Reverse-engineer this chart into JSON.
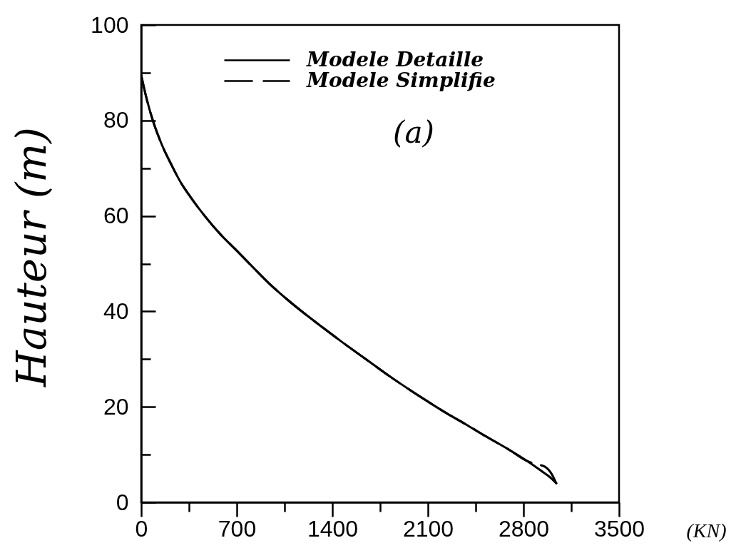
{
  "chart_data": {
    "type": "line",
    "xlabel": "(KN)",
    "ylabel": "Hauteur (m)",
    "xlim": [
      0,
      3500
    ],
    "ylim": [
      0,
      100
    ],
    "xticks": [
      0,
      {
        "value": 350,
        "label": null
      },
      700,
      {
        "value": 1050,
        "label": null
      },
      1400,
      {
        "value": 1750,
        "label": null
      },
      2100,
      {
        "value": 2450,
        "label": null
      },
      2800,
      {
        "value": 3150,
        "label": null
      },
      3500
    ],
    "yticks": [
      0,
      {
        "value": 10,
        "label": null
      },
      20,
      {
        "value": 30,
        "label": null
      },
      40,
      {
        "value": 50,
        "label": null
      },
      60,
      {
        "value": 70,
        "label": null
      },
      80,
      {
        "value": 90,
        "label": null
      },
      100
    ],
    "grid": false,
    "legend": "top",
    "annotations": [
      "(a)"
    ],
    "series": [
      {
        "name": "Modele Detaille",
        "color": "#000000",
        "line_style": "solid",
        "x": [
          0,
          40,
          85,
          150,
          225,
          290,
          360,
          465,
          585,
          690,
          810,
          950,
          1090,
          1335,
          1475,
          1645,
          1820,
          1960,
          2100,
          2240,
          2380,
          2520,
          2690,
          2830,
          2935,
          3005,
          3040
        ],
        "values": [
          89.5,
          84.5,
          80,
          75,
          70.5,
          67,
          64,
          60,
          56,
          53,
          49.5,
          45.5,
          42,
          36.5,
          33.5,
          30,
          26.4,
          23.7,
          21.1,
          18.6,
          16.3,
          13.9,
          11.1,
          8.6,
          6.5,
          5,
          4
        ]
      },
      {
        "name": "Modele Simplifie",
        "color": "#000000",
        "line_style": "dashed",
        "x": [
          0,
          40,
          85,
          150,
          225,
          290,
          360,
          465,
          585,
          690,
          810,
          950,
          1090,
          1335,
          1475,
          1645,
          1820,
          1960,
          2100,
          2240,
          2380,
          2520,
          2690,
          2830,
          2890,
          2955,
          3005,
          3040
        ],
        "values": [
          89.5,
          84.5,
          80,
          75,
          70.5,
          67,
          64,
          60,
          56,
          53,
          49.5,
          45.5,
          42,
          36.5,
          33.5,
          30,
          26.4,
          23.7,
          21.1,
          18.6,
          16.3,
          13.9,
          11.1,
          8.6,
          8,
          7.5,
          6,
          4
        ]
      }
    ]
  }
}
